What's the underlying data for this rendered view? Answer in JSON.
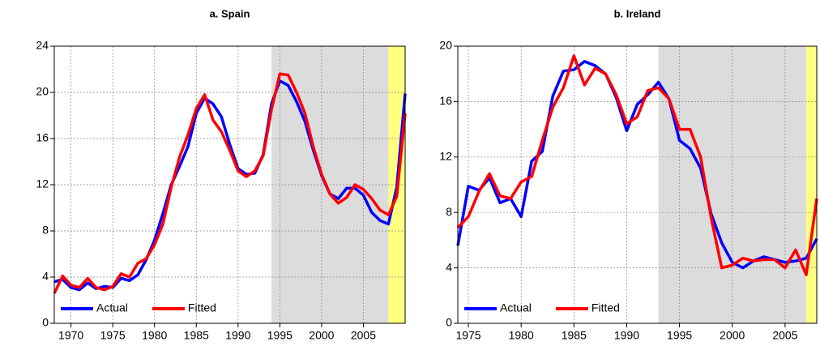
{
  "chart_data": [
    {
      "type": "line",
      "title": "a. Spain",
      "x": [
        1968,
        1969,
        1970,
        1971,
        1972,
        1973,
        1974,
        1975,
        1976,
        1977,
        1978,
        1979,
        1980,
        1981,
        1982,
        1983,
        1984,
        1985,
        1986,
        1987,
        1988,
        1989,
        1990,
        1991,
        1992,
        1993,
        1994,
        1995,
        1996,
        1997,
        1998,
        1999,
        2000,
        2001,
        2002,
        2003,
        2004,
        2005,
        2006,
        2007,
        2008,
        2009,
        2010
      ],
      "series": [
        {
          "name": "Actual",
          "color": "#0000ff",
          "values": [
            3.6,
            3.8,
            3.1,
            2.9,
            3.5,
            3.0,
            3.2,
            3.1,
            3.9,
            3.7,
            4.2,
            5.5,
            7.2,
            9.5,
            12.0,
            13.6,
            15.3,
            18.2,
            19.5,
            19.0,
            17.9,
            15.5,
            13.4,
            12.9,
            13.0,
            14.6,
            19.0,
            21.0,
            20.6,
            19.2,
            17.5,
            15.0,
            12.8,
            11.2,
            10.8,
            11.7,
            11.7,
            11.1,
            9.6,
            8.9,
            8.6,
            11.8,
            19.9
          ]
        },
        {
          "name": "Fitted",
          "color": "#ff0000",
          "values": [
            2.6,
            4.1,
            3.3,
            3.1,
            3.9,
            3.1,
            2.9,
            3.2,
            4.3,
            4.0,
            5.2,
            5.6,
            6.8,
            8.6,
            11.8,
            14.4,
            16.3,
            18.6,
            19.8,
            17.6,
            16.6,
            15.0,
            13.2,
            12.7,
            13.2,
            14.5,
            18.5,
            21.6,
            21.5,
            20.0,
            18.2,
            15.3,
            12.9,
            11.2,
            10.4,
            10.9,
            12.0,
            11.6,
            10.8,
            9.8,
            9.4,
            11.0,
            18.2
          ]
        }
      ],
      "shaded_regions": [
        {
          "from": 1994,
          "to": 2008,
          "color": "#dcdcdc"
        },
        {
          "from": 2008,
          "to": 2010,
          "color": "#ffff80"
        }
      ],
      "xlim": [
        1968,
        2010
      ],
      "xticks": [
        1970,
        1975,
        1980,
        1985,
        1990,
        1995,
        2000,
        2005
      ],
      "ylim": [
        0,
        24
      ],
      "yticks": [
        0,
        4,
        8,
        12,
        16,
        20,
        24
      ],
      "grid": true,
      "legend": "bottom-left"
    },
    {
      "type": "line",
      "title": "b. Ireland",
      "x": [
        1974,
        1975,
        1976,
        1977,
        1978,
        1979,
        1980,
        1981,
        1982,
        1983,
        1984,
        1985,
        1986,
        1987,
        1988,
        1989,
        1990,
        1991,
        1992,
        1993,
        1994,
        1995,
        1996,
        1997,
        1998,
        1999,
        2000,
        2001,
        2002,
        2003,
        2004,
        2005,
        2006,
        2007,
        2008
      ],
      "series": [
        {
          "name": "Actual",
          "color": "#0000ff",
          "values": [
            5.6,
            9.9,
            9.6,
            10.5,
            8.7,
            9.0,
            7.7,
            11.7,
            12.4,
            16.4,
            18.2,
            18.3,
            18.9,
            18.6,
            18.0,
            16.3,
            13.9,
            15.8,
            16.5,
            17.4,
            16.2,
            13.2,
            12.6,
            11.2,
            7.9,
            5.8,
            4.4,
            4.0,
            4.5,
            4.8,
            4.6,
            4.4,
            4.5,
            4.7,
            6.1
          ]
        },
        {
          "name": "Fitted",
          "color": "#ff0000",
          "values": [
            6.9,
            7.7,
            9.5,
            10.8,
            9.2,
            9.0,
            10.2,
            10.6,
            13.2,
            15.6,
            17.0,
            19.3,
            17.2,
            18.4,
            18.0,
            16.5,
            14.4,
            14.9,
            16.8,
            17.0,
            16.2,
            14.0,
            14.0,
            12.0,
            7.6,
            4.0,
            4.2,
            4.7,
            4.5,
            4.6,
            4.6,
            4.0,
            5.3,
            3.5,
            9.0
          ]
        }
      ],
      "shaded_regions": [
        {
          "from": 1993,
          "to": 2007,
          "color": "#dcdcdc"
        },
        {
          "from": 2007,
          "to": 2008,
          "color": "#ffff80"
        }
      ],
      "xlim": [
        1974,
        2008
      ],
      "xticks": [
        1975,
        1980,
        1985,
        1990,
        1995,
        2000,
        2005
      ],
      "ylim": [
        0,
        20
      ],
      "yticks": [
        0,
        4,
        8,
        12,
        16,
        20
      ],
      "grid": true,
      "legend": "bottom-left"
    }
  ]
}
